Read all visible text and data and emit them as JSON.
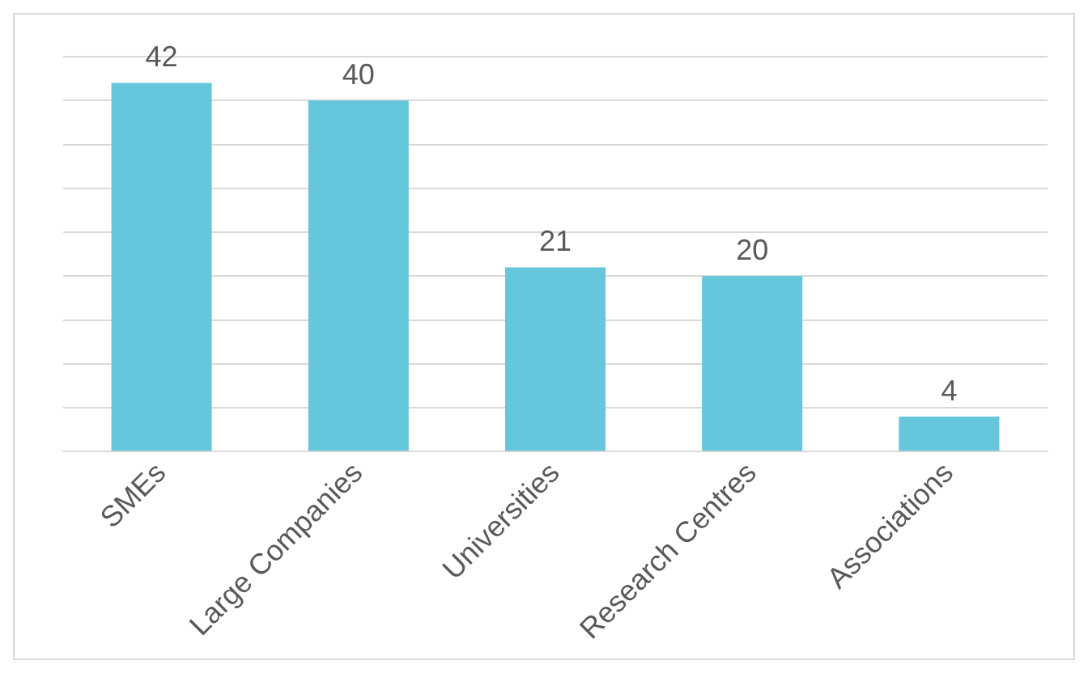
{
  "chart_data": {
    "type": "bar",
    "categories": [
      "SMEs",
      "Large Companies",
      "Universities",
      "Research Centres",
      "Associations"
    ],
    "values": [
      42,
      40,
      21,
      20,
      4
    ],
    "color": "#66c6dc",
    "data_labels": true,
    "grid": "y",
    "tick_labels": "x",
    "legend": false,
    "ylim": [
      0,
      45
    ],
    "yticks": [
      {
        "value": 0,
        "label": null
      },
      {
        "value": 5,
        "label": null
      },
      {
        "value": 10,
        "label": null
      },
      {
        "value": 15,
        "label": null
      },
      {
        "value": 20,
        "label": null
      },
      {
        "value": 25,
        "label": null
      },
      {
        "value": 30,
        "label": null
      },
      {
        "value": 35,
        "label": null
      },
      {
        "value": 40,
        "label": null
      },
      {
        "value": 45,
        "label": null
      }
    ]
  }
}
